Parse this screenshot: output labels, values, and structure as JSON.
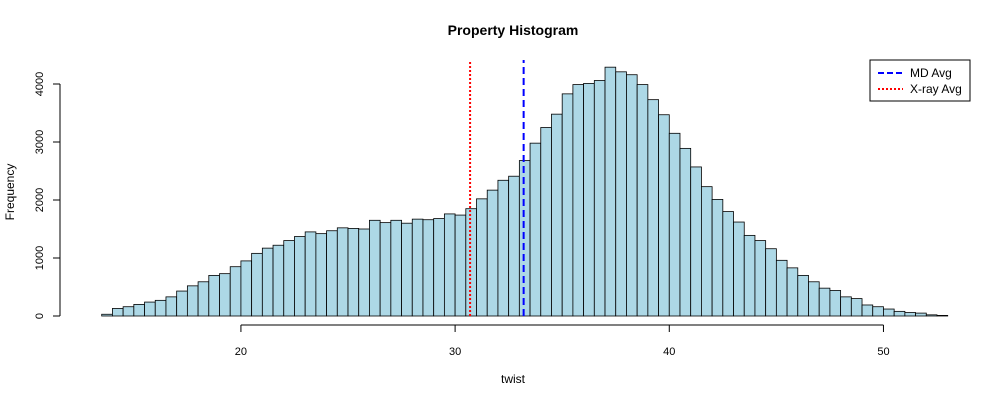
{
  "chart_data": {
    "type": "bar",
    "title": "Property Histogram",
    "xlabel": "twist",
    "ylabel": "Frequency",
    "xlim": [
      13,
      52.5
    ],
    "ylim": [
      0,
      4400
    ],
    "bin_width": 0.5,
    "bin_start": 13.5,
    "bar_color": "#add8e6",
    "bar_stroke": "#000000",
    "x_ticks": [
      20,
      30,
      40,
      50
    ],
    "y_ticks": [
      0,
      1000,
      2000,
      3000,
      4000
    ],
    "values": [
      30,
      130,
      160,
      200,
      240,
      270,
      330,
      430,
      520,
      590,
      700,
      730,
      850,
      950,
      1080,
      1170,
      1220,
      1300,
      1370,
      1450,
      1420,
      1470,
      1520,
      1510,
      1500,
      1650,
      1610,
      1650,
      1600,
      1670,
      1660,
      1680,
      1760,
      1740,
      1850,
      2020,
      2170,
      2340,
      2410,
      2680,
      2980,
      3250,
      3480,
      3830,
      3990,
      4010,
      4060,
      4290,
      4210,
      4160,
      3990,
      3730,
      3470,
      3150,
      2890,
      2570,
      2230,
      2010,
      1800,
      1620,
      1390,
      1300,
      1160,
      960,
      830,
      700,
      590,
      480,
      440,
      330,
      300,
      190,
      160,
      120,
      80,
      60,
      50,
      20,
      10
    ],
    "reference_lines": [
      {
        "name": "MD Avg",
        "x": 33.2,
        "color": "#0000ff",
        "style": "dashed"
      },
      {
        "name": "X-ray Avg",
        "x": 30.7,
        "color": "#ff0000",
        "style": "dotted"
      }
    ],
    "legend_position": "top-right"
  }
}
